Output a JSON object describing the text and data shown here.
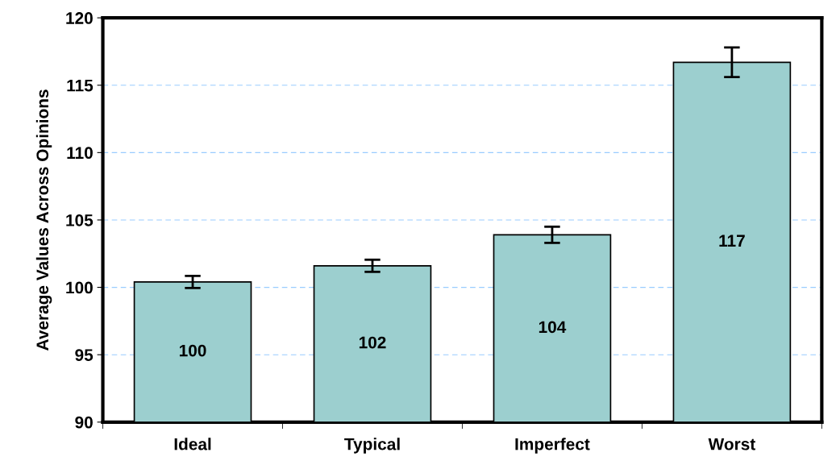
{
  "chart_data": {
    "type": "bar",
    "ylabel": "Average Values Across Opinions",
    "categories": [
      "Ideal",
      "Typical",
      "Imperfect",
      "Worst"
    ],
    "values": [
      100.4,
      101.6,
      103.9,
      116.7
    ],
    "errors": [
      0.45,
      0.45,
      0.6,
      1.1
    ],
    "value_labels": [
      "100",
      "102",
      "104",
      "117"
    ],
    "color": "#9ccfcf",
    "ylim": [
      90,
      120
    ],
    "yticks": [
      90,
      95,
      100,
      105,
      110,
      115,
      120
    ],
    "grid": "y"
  }
}
